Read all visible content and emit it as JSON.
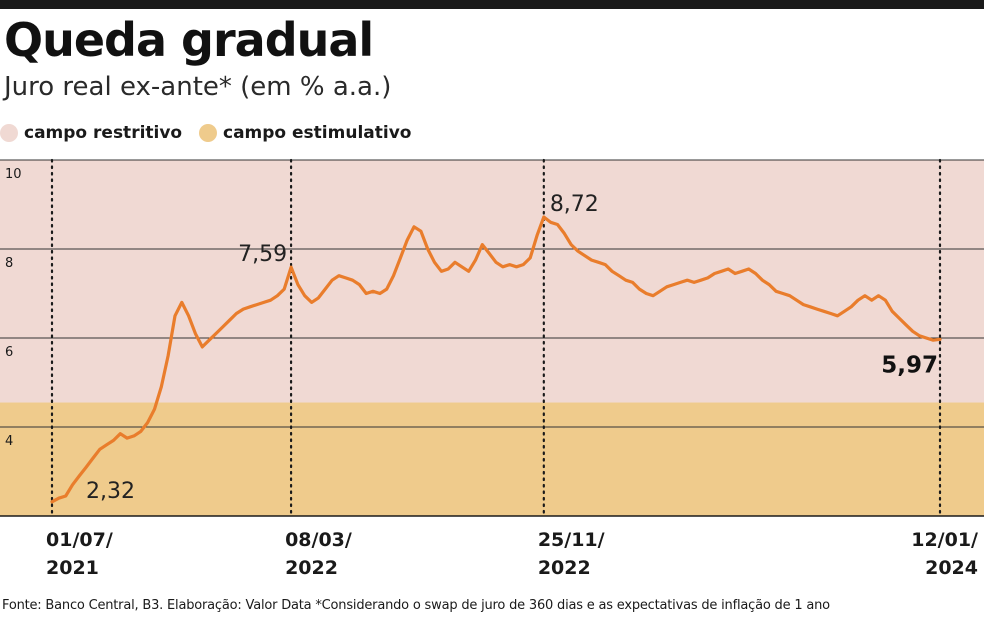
{
  "header": {
    "title": "Queda gradual",
    "subtitle": "Juro real ex-ante* (em % a.a.)"
  },
  "legend": {
    "items": [
      {
        "label": "campo restritivo",
        "color": "#f0d9d3"
      },
      {
        "label": "campo estimulativo",
        "color": "#efcb8c"
      }
    ]
  },
  "colors": {
    "line": "#e97d2c",
    "restrictive_band": "#f0d9d3",
    "stimulative_band": "#efcb8c",
    "gridline": "#333333",
    "divider": "#1a1a1a"
  },
  "chart_data": {
    "type": "line",
    "title": "Queda gradual",
    "subtitle": "Juro real ex-ante* (em % a.a.)",
    "xlabel": "",
    "ylabel": "",
    "ylim": [
      2,
      10
    ],
    "yticks": [
      4,
      6,
      8,
      10
    ],
    "grid": true,
    "stimulative_threshold": 4.55,
    "x_ticks": [
      {
        "line1": "01/07/",
        "line2": "2021",
        "index": 0
      },
      {
        "line1": "08/03/",
        "line2": "2022",
        "index": 35
      },
      {
        "line1": "25/11/",
        "line2": "2022",
        "index": 72
      },
      {
        "line1": "12/01/",
        "line2": "2024",
        "index": 130
      }
    ],
    "annotations": [
      {
        "text": "2,32",
        "index": 0,
        "bold": false
      },
      {
        "text": "7,59",
        "index": 35,
        "bold": false
      },
      {
        "text": "8,72",
        "index": 72,
        "bold": false
      },
      {
        "text": "5,97",
        "index": 130,
        "bold": true
      }
    ],
    "series": [
      {
        "name": "Juro real ex-ante",
        "values": [
          2.32,
          2.4,
          2.45,
          2.7,
          2.9,
          3.1,
          3.3,
          3.5,
          3.6,
          3.7,
          3.85,
          3.75,
          3.8,
          3.9,
          4.1,
          4.4,
          4.9,
          5.6,
          6.5,
          6.8,
          6.5,
          6.1,
          5.8,
          5.95,
          6.1,
          6.25,
          6.4,
          6.55,
          6.65,
          6.7,
          6.75,
          6.8,
          6.85,
          6.95,
          7.1,
          7.59,
          7.2,
          6.95,
          6.8,
          6.9,
          7.1,
          7.3,
          7.4,
          7.35,
          7.3,
          7.2,
          7.0,
          7.05,
          7.0,
          7.1,
          7.4,
          7.8,
          8.2,
          8.5,
          8.4,
          8.0,
          7.7,
          7.5,
          7.55,
          7.7,
          7.6,
          7.5,
          7.75,
          8.1,
          7.9,
          7.7,
          7.6,
          7.65,
          7.6,
          7.65,
          7.8,
          8.3,
          8.72,
          8.6,
          8.55,
          8.35,
          8.1,
          7.95,
          7.85,
          7.75,
          7.7,
          7.65,
          7.5,
          7.4,
          7.3,
          7.25,
          7.1,
          7.0,
          6.95,
          7.05,
          7.15,
          7.2,
          7.25,
          7.3,
          7.25,
          7.3,
          7.35,
          7.45,
          7.5,
          7.55,
          7.45,
          7.5,
          7.55,
          7.45,
          7.3,
          7.2,
          7.05,
          7.0,
          6.95,
          6.85,
          6.75,
          6.7,
          6.65,
          6.6,
          6.55,
          6.5,
          6.6,
          6.7,
          6.85,
          6.95,
          6.85,
          6.95,
          6.85,
          6.6,
          6.45,
          6.3,
          6.15,
          6.05,
          6.0,
          5.95,
          5.97
        ]
      }
    ]
  },
  "footnote": "Fonte: Banco Central, B3. Elaboração: Valor Data *Considerando o swap de juro de 360 dias e as expectativas de inflação de 1 ano"
}
